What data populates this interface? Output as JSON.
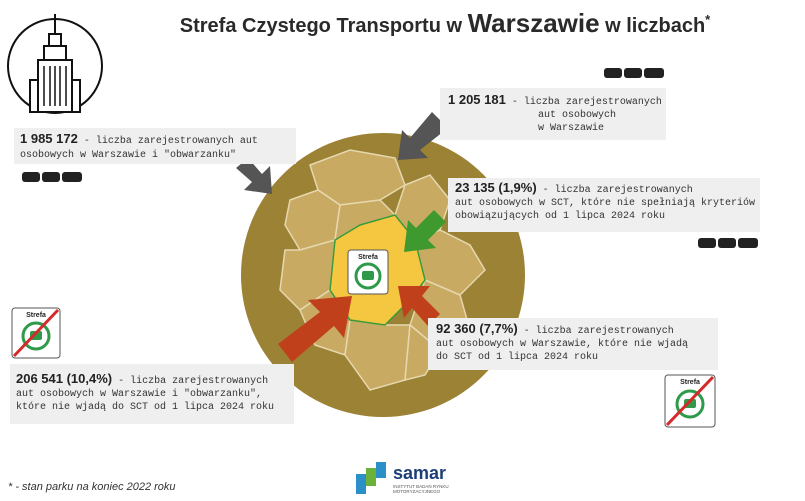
{
  "header": {
    "title_start": "Strefa Czystego Transportu w ",
    "title_city": "Warszawie",
    "title_end": " w liczbach",
    "title_mark": "*"
  },
  "callouts": [
    {
      "number": "1 205 181",
      "lines": [
        " - liczba zarejestrowanych",
        "aut osobowych",
        "w Warszawie"
      ]
    },
    {
      "number": "1 985 172",
      "lines": [
        " - liczba zarejestrowanych aut",
        "osobowych w Warszawie i \"obwarzanku\""
      ]
    },
    {
      "number": "23 135 (1,9%)",
      "lines": [
        " - liczba zarejestrowanych",
        "aut osobowych w SCT, które nie spełniają kryteriów",
        "obowiązujących od 1 lipca 2024 roku"
      ]
    },
    {
      "number": "92 360 (7,7%)",
      "lines": [
        " - liczba zarejestrowanych",
        "aut osobowych w Warszawie, które nie wjadą",
        "do SCT od 1 lipca 2024 roku"
      ]
    },
    {
      "number": "206 541 (10,4%)",
      "lines": [
        " - liczba zarejestrowanych",
        "aut osobowych w Warszawie i \"obwarzanku\",",
        "które nie wjadą do SCT od 1 lipca 2024 roku"
      ]
    }
  ],
  "signs": [
    "Strefa",
    "Strefa",
    "Strefa"
  ],
  "footnote": "* - stan parku na koniec 2022 roku",
  "logo": {
    "name": "samar",
    "tagline": [
      "INSTYTUT BADAŃ RYNKU",
      "MOTORYZACYJNEGO"
    ]
  }
}
